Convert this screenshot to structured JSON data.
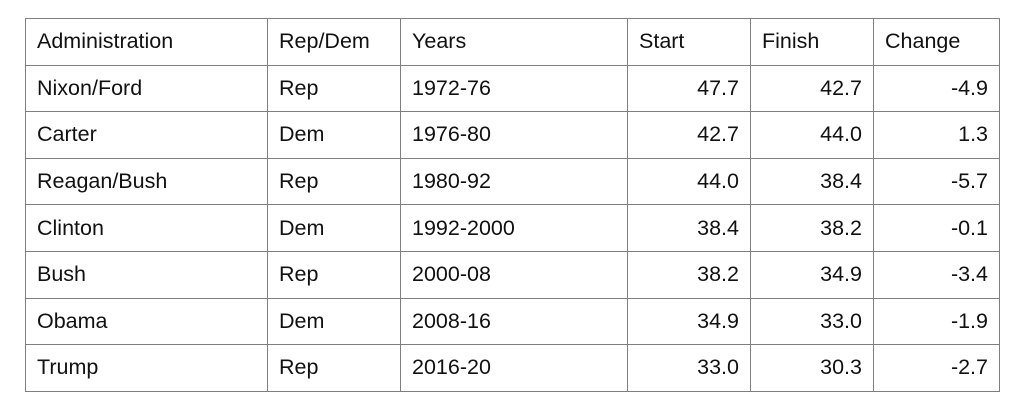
{
  "table": {
    "header": [
      "Administration",
      "Rep/Dem",
      "Years",
      "Start",
      "Finish",
      "Change"
    ],
    "rows": [
      [
        "Nixon/Ford",
        "Rep",
        "1972-76",
        "47.7",
        "42.7",
        "-4.9"
      ],
      [
        "Carter",
        "Dem",
        "1976-80",
        "42.7",
        "44.0",
        "1.3"
      ],
      [
        "Reagan/Bush",
        "Rep",
        "1980-92",
        "44.0",
        "38.4",
        "-5.7"
      ],
      [
        "Clinton",
        "Dem",
        "1992-2000",
        "38.4",
        "38.2",
        "-0.1"
      ],
      [
        "Bush",
        "Rep",
        "2000-08",
        "38.2",
        "34.9",
        "-3.4"
      ],
      [
        "Obama",
        "Dem",
        "2008-16",
        "34.9",
        "33.0",
        "-1.9"
      ],
      [
        "Trump",
        "Rep",
        "2016-20",
        "33.0",
        "30.3",
        "-2.7"
      ]
    ]
  }
}
